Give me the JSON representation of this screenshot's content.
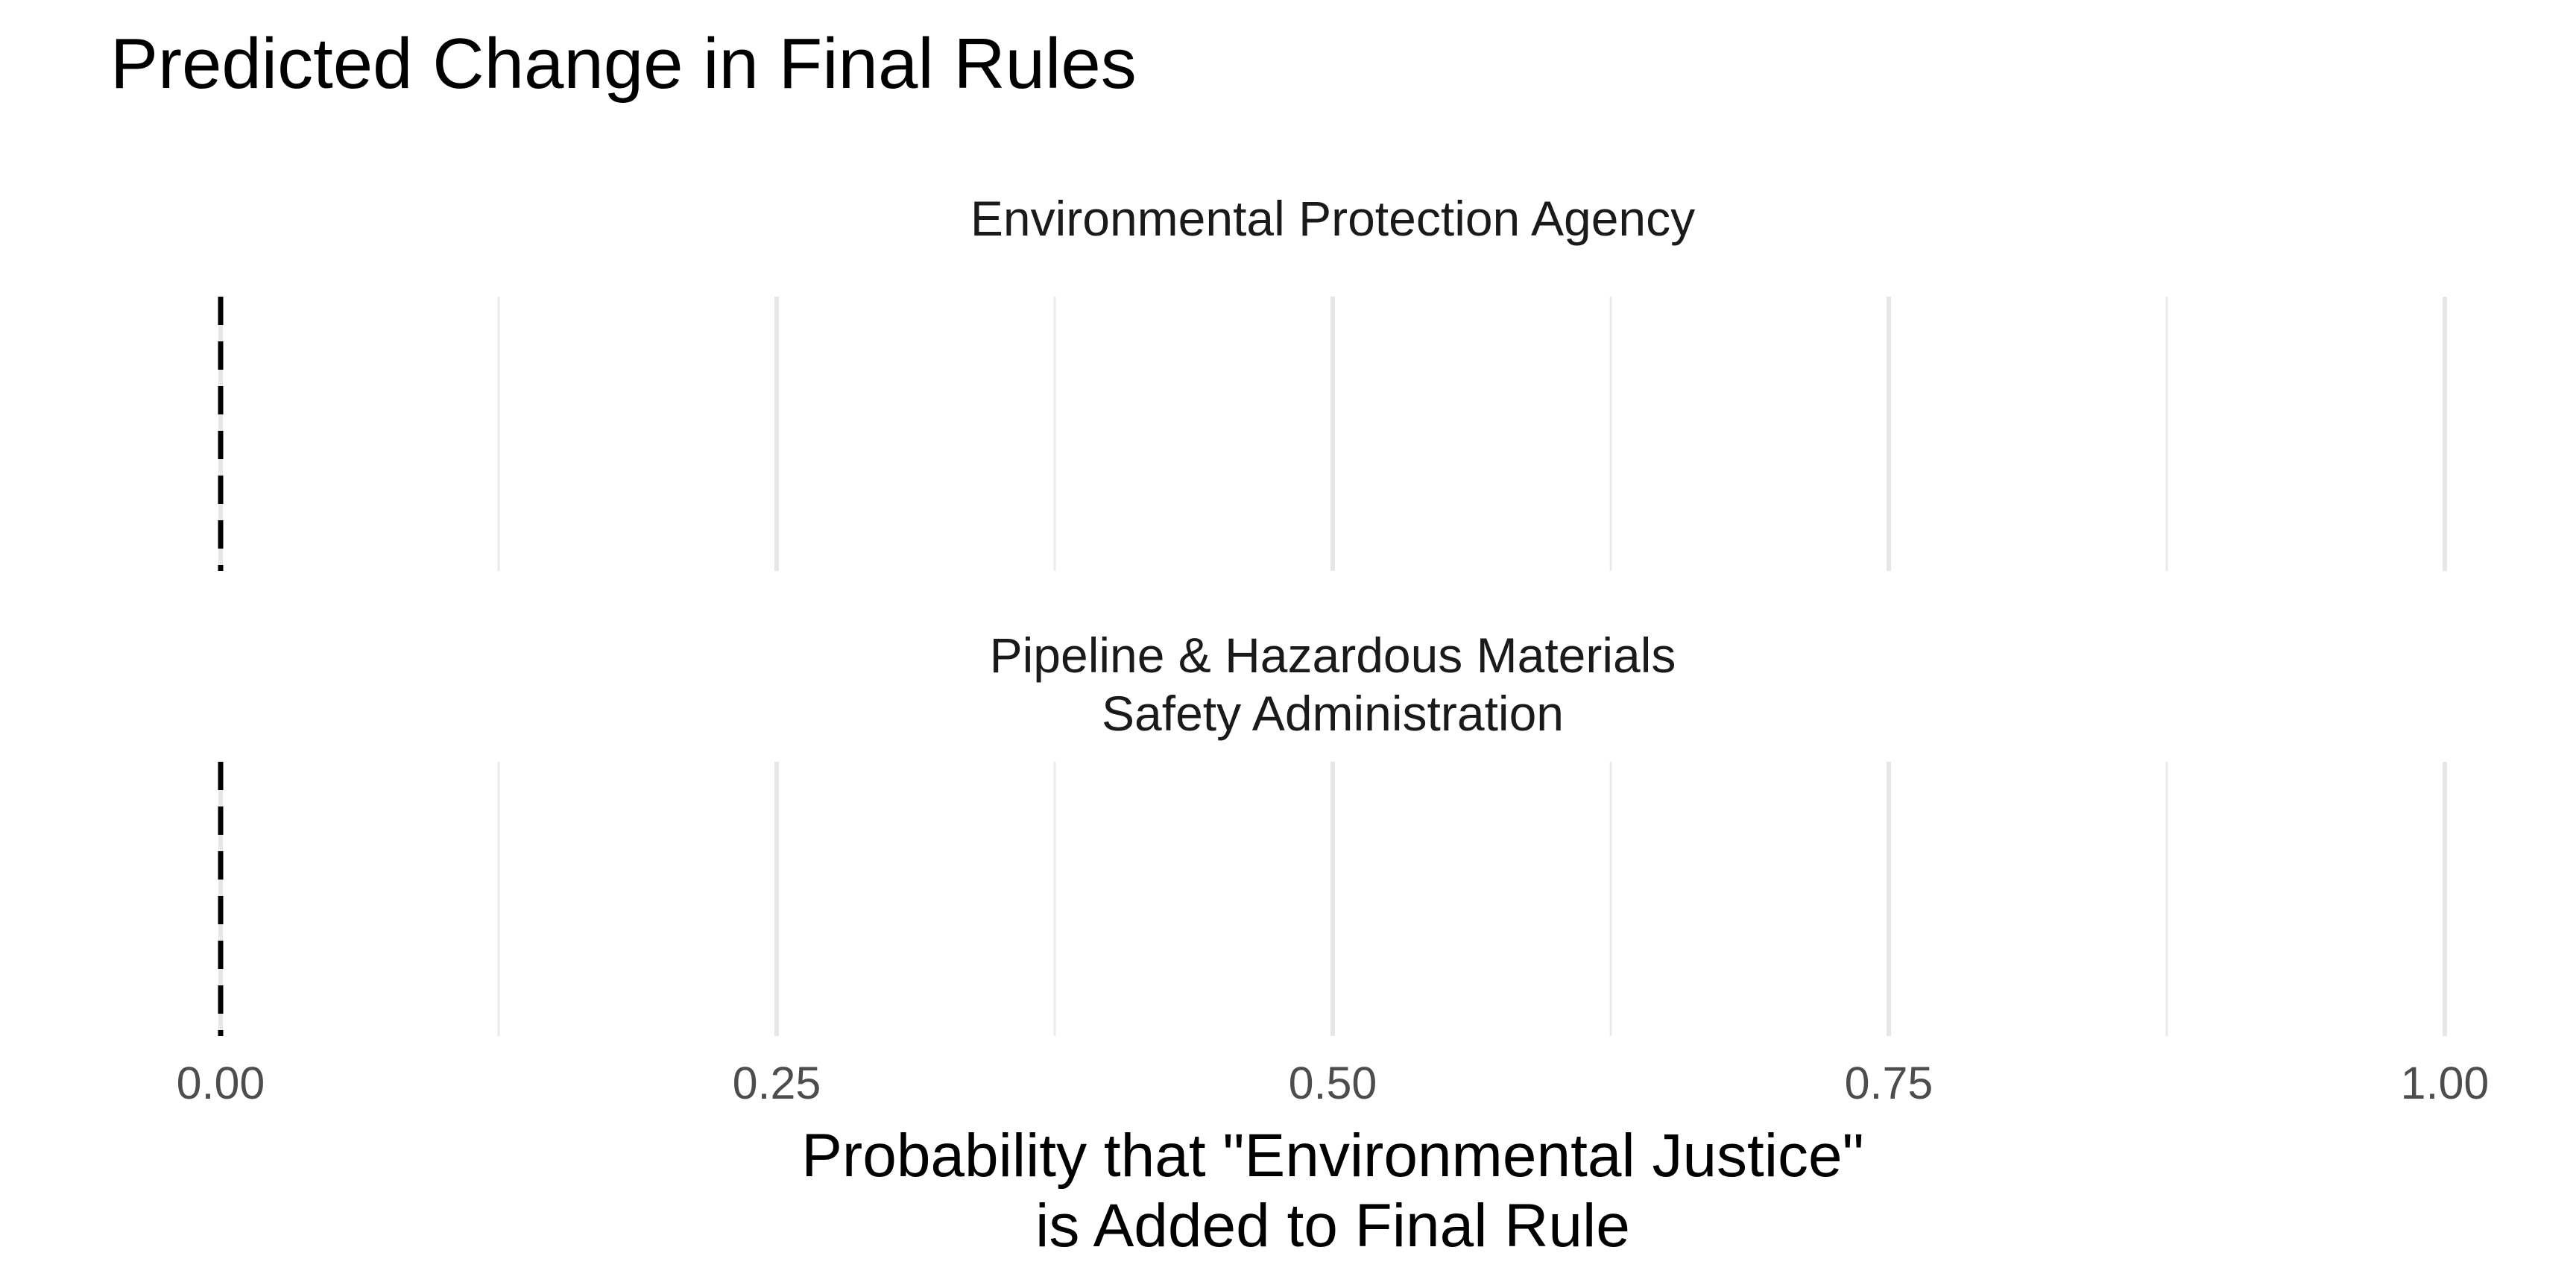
{
  "chart_data": {
    "type": "line",
    "title": "Predicted Change in Final Rules",
    "xlabel": [
      "Probability that \"Environmental Justice\"",
      "is Added to Final Rule"
    ],
    "ylabel": "",
    "xlim": [
      0,
      1
    ],
    "x_ticks": [
      0.0,
      0.25,
      0.5,
      0.75,
      1.0
    ],
    "x_tick_labels": [
      "0.00",
      "0.25",
      "0.50",
      "0.75",
      "1.00"
    ],
    "x_minor_ticks": [
      0.125,
      0.375,
      0.625,
      0.875
    ],
    "grid": "vertical",
    "reference_line": {
      "x": 0,
      "style": "dashed",
      "color": "#000000"
    },
    "panels": [
      {
        "name": "Environmental Protection Agency",
        "label_lines": [
          "Environmental Protection Agency"
        ]
      },
      {
        "name": "Pipeline & Hazardous Materials Safety Administration",
        "label_lines": [
          "Pipeline & Hazardous Materials",
          "Safety Administration"
        ]
      }
    ]
  }
}
